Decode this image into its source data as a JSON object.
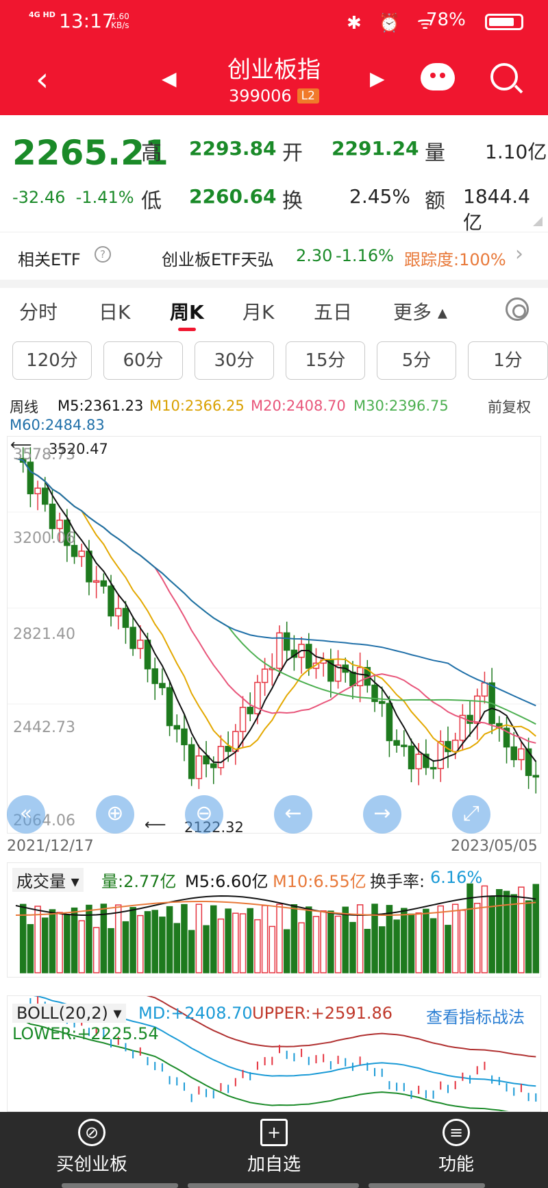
{
  "status": {
    "net": "4G HD",
    "time": "13:17",
    "speed_top": "1.60",
    "speed_unit": "KB/s",
    "icons": "✱ ⏰ ᯤ",
    "battery": "78%"
  },
  "header": {
    "title": "创业板指",
    "code": "399006",
    "badge": "L2"
  },
  "quote": {
    "price": "2265.21",
    "change": "-32.46",
    "pct": "-1.41%",
    "high_label": "高",
    "high": "2293.84",
    "open_label": "开",
    "open": "2291.24",
    "vol_label": "量",
    "vol": "1.10亿",
    "low_label": "低",
    "low": "2260.64",
    "turn_label": "换",
    "turn": "2.45%",
    "amt_label": "额",
    "amt": "1844.4亿"
  },
  "etf": {
    "label": "相关ETF",
    "help": "?",
    "name": "创业板ETF天弘",
    "price": "2.30",
    "pct": "-1.16%",
    "track": "跟踪度:100%",
    "arrow": "›"
  },
  "tabs": [
    "分时",
    "日K",
    "周K",
    "月K",
    "五日",
    "更多 ▴"
  ],
  "minute_buttons": [
    "120分",
    "60分",
    "30分",
    "15分",
    "5分",
    "1分"
  ],
  "kline": {
    "period": "周线",
    "m5": "M5:2361.23",
    "m10": "M10:2366.25",
    "m20": "M20:2408.70",
    "m30": "M30:2396.75",
    "fuquan": "前复权",
    "m60": "M60:2484.83",
    "high_mark": "3520.47",
    "low_mark": "2122.32",
    "y_labels": [
      "3578.73",
      "3200.06",
      "2821.40",
      "2442.73",
      "2064.06"
    ],
    "date_start": "2021/12/17",
    "date_end": "2023/05/05",
    "colors": {
      "m5": "#111111",
      "m10": "#e3a800",
      "m20": "#e8557a",
      "m30": "#4caf50",
      "m60": "#1f6fa8",
      "up": "#e5333f",
      "down": "#1e7a1e"
    }
  },
  "volume": {
    "selector": "成交量 ▾",
    "vol": "量:2.77亿",
    "m5": "M5:6.60亿",
    "m10": "M10:6.55亿",
    "turn_label": "换手率:",
    "turn": "6.16%"
  },
  "boll": {
    "selector": "BOLL(20,2) ▾",
    "md": "MD:+2408.70",
    "upper": "UPPER:+2591.86",
    "link": "查看指标战法",
    "lower": "LOWER:+2225.54"
  },
  "bottom": {
    "buy": "买创业板",
    "add": "加自选",
    "func": "功能"
  }
}
